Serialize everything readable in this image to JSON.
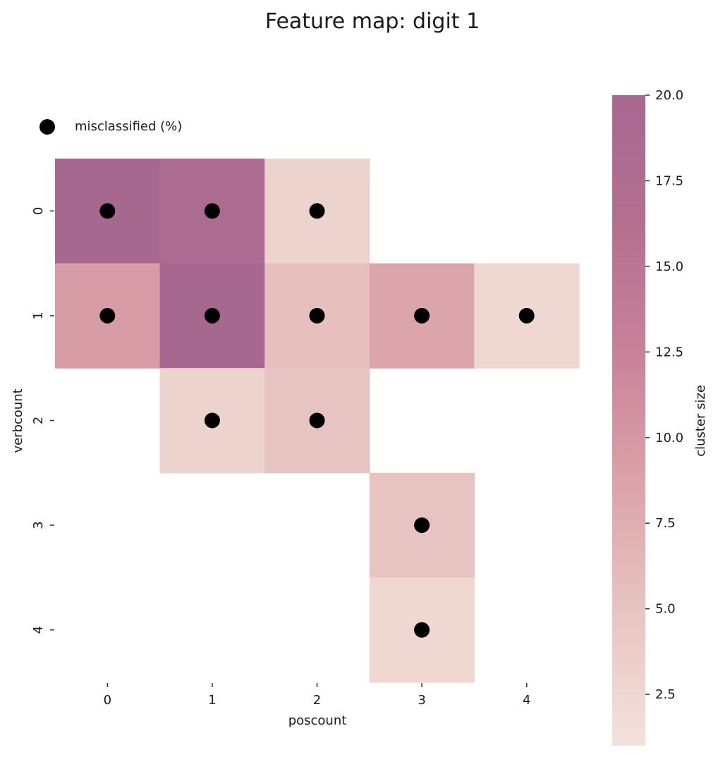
{
  "chart_data": {
    "type": "heatmap",
    "title": "Feature map: digit 1",
    "xlabel": "poscount",
    "ylabel": "verbcount",
    "x_categories": [
      "0",
      "1",
      "2",
      "3",
      "4"
    ],
    "y_categories": [
      "0",
      "1",
      "2",
      "3",
      "4"
    ],
    "cells": [
      {
        "x": 0,
        "y": 0,
        "cluster_size": 20
      },
      {
        "x": 1,
        "y": 0,
        "cluster_size": 18.5
      },
      {
        "x": 2,
        "y": 0,
        "cluster_size": 3
      },
      {
        "x": 0,
        "y": 1,
        "cluster_size": 9.5
      },
      {
        "x": 1,
        "y": 1,
        "cluster_size": 20
      },
      {
        "x": 2,
        "y": 1,
        "cluster_size": 5.5
      },
      {
        "x": 3,
        "y": 1,
        "cluster_size": 8.5
      },
      {
        "x": 4,
        "y": 1,
        "cluster_size": 2.5
      },
      {
        "x": 1,
        "y": 2,
        "cluster_size": 3
      },
      {
        "x": 2,
        "y": 2,
        "cluster_size": 5
      },
      {
        "x": 3,
        "y": 3,
        "cluster_size": 5
      },
      {
        "x": 3,
        "y": 4,
        "cluster_size": 2.5
      }
    ],
    "markers": {
      "legend_label": "misclassified (%)",
      "color": "#000000"
    },
    "colorbar": {
      "label": "cluster size",
      "min": 1,
      "max": 20,
      "ticks": [
        "2.5",
        "5.0",
        "7.5",
        "10.0",
        "12.5",
        "15.0",
        "17.5",
        "20.0"
      ],
      "colors": [
        "#f3e2dc",
        "#e8c5c2",
        "#dba4aa",
        "#c98299",
        "#b3708f",
        "#a76890"
      ]
    },
    "legend_placement": "top-left",
    "grid": false
  }
}
